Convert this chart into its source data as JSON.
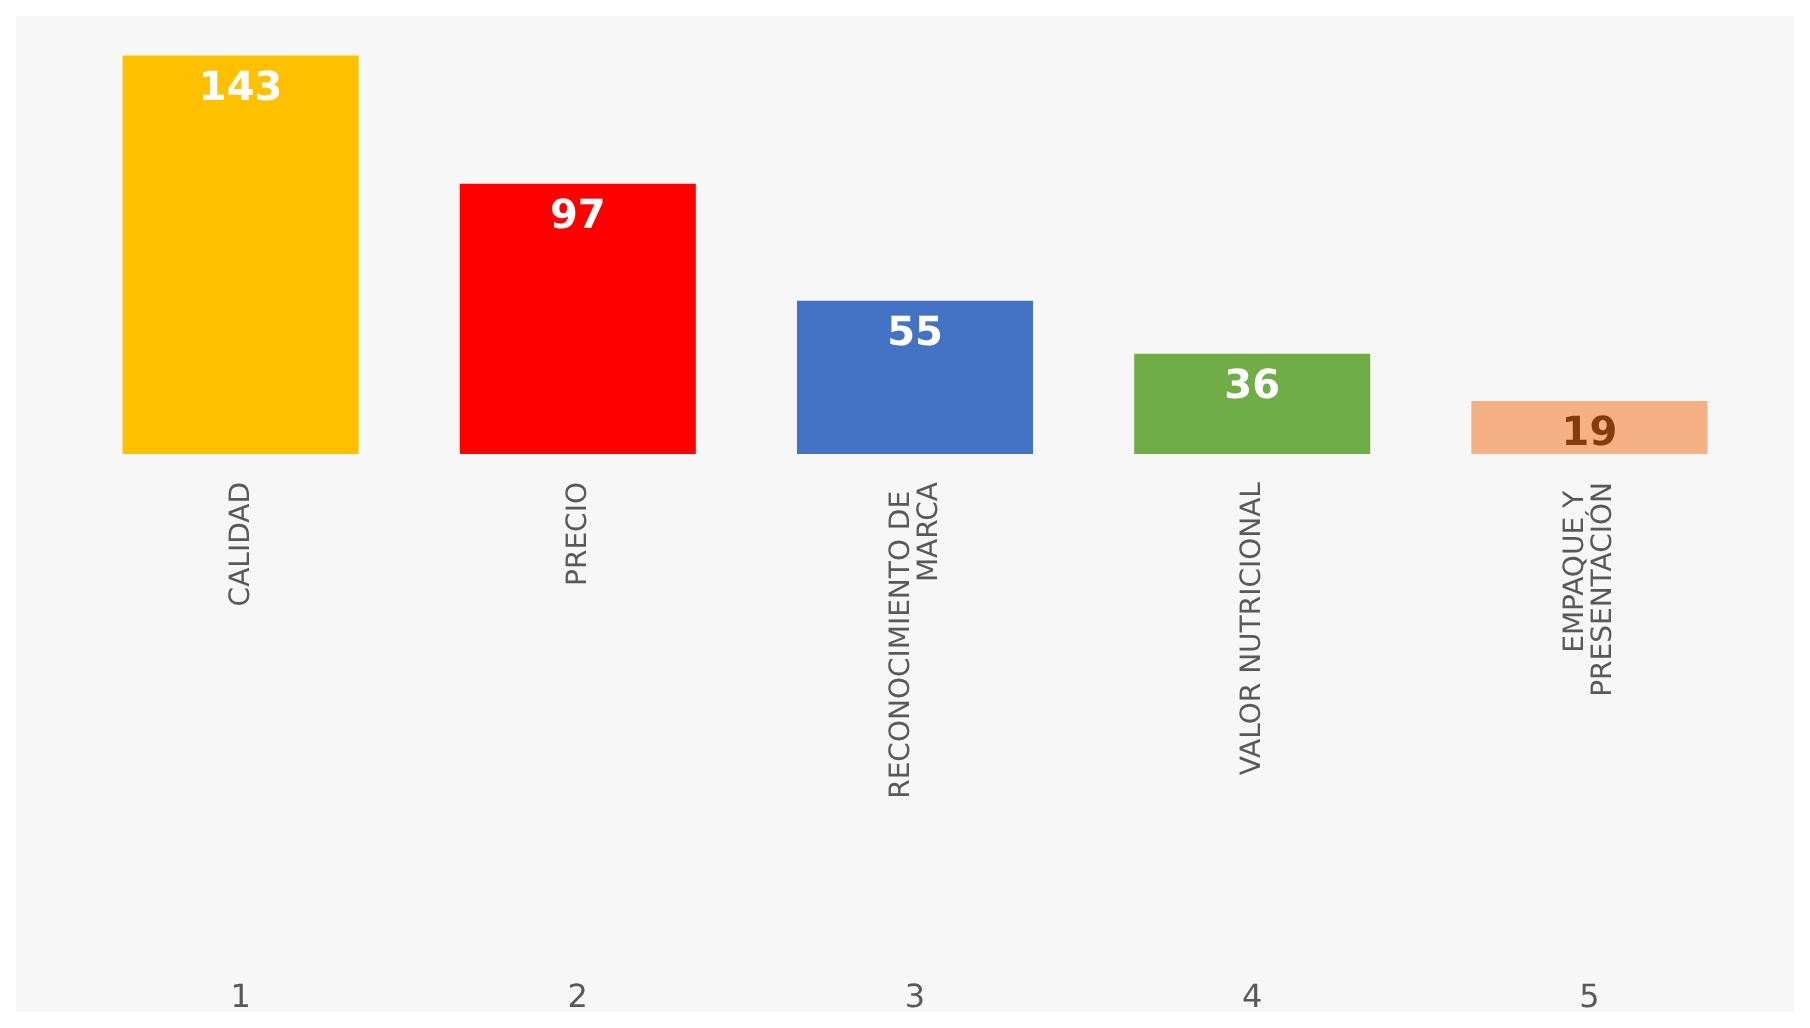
{
  "chart_data": {
    "type": "bar",
    "categories": [
      "CALIDAD",
      "PRECIO",
      "RECONOCIMIENTO DE MARCA",
      "VALOR NUTRICIONAL",
      "EMPAQUE Y PRESENTACIÓN"
    ],
    "values": [
      143,
      97,
      55,
      36,
      19
    ],
    "colors": [
      "#ffc000",
      "#ff0000",
      "#4472c4",
      "#70ad47",
      "#f4b183"
    ],
    "data_labels": true,
    "annotations": [
      "1",
      "2",
      "3",
      "4",
      "5"
    ]
  }
}
